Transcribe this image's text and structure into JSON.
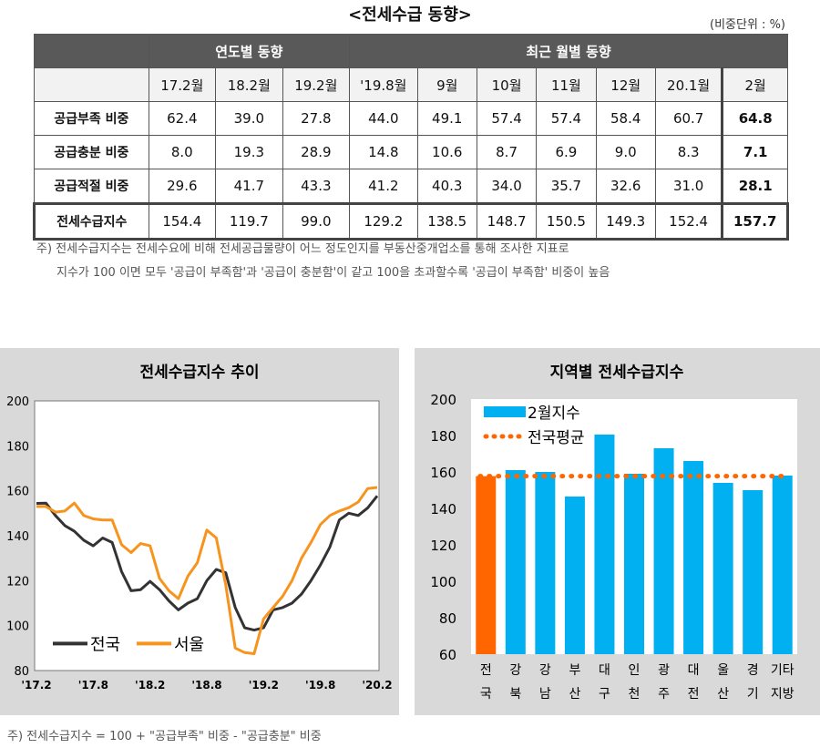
{
  "page_title": "<전세수급 동향>",
  "unit_note": "(비중단위 : %)",
  "table": {
    "group_headers": [
      "연도별 동향",
      "최근 월별 동향"
    ],
    "columns": [
      "17.2월",
      "18.2월",
      "19.2월",
      "'19.8월",
      "9월",
      "10월",
      "11월",
      "12월",
      "20.1월",
      "2월"
    ],
    "rows": [
      {
        "label": "공급부족 비중",
        "values": [
          "62.4",
          "39.0",
          "27.8",
          "44.0",
          "49.1",
          "57.4",
          "57.4",
          "58.4",
          "60.7",
          "64.8"
        ]
      },
      {
        "label": "공급충분 비중",
        "values": [
          "8.0",
          "19.3",
          "28.9",
          "14.8",
          "10.6",
          "8.7",
          "6.9",
          "9.0",
          "8.3",
          "7.1"
        ]
      },
      {
        "label": "공급적절 비중",
        "values": [
          "29.6",
          "41.7",
          "43.3",
          "41.2",
          "40.3",
          "34.0",
          "35.7",
          "32.6",
          "31.0",
          "28.1"
        ]
      },
      {
        "label": "전세수급지수",
        "values": [
          "154.4",
          "119.7",
          "99.0",
          "129.2",
          "138.5",
          "148.7",
          "150.5",
          "149.3",
          "152.4",
          "157.7"
        ]
      }
    ]
  },
  "notes": [
    "주) 전세수급지수는 전세수요에 비해 전세공급물량이 어느 정도인지를 부동산중개업소를 통해 조사한 지표로",
    "지수가 100 이면 모두 '공급이 부족함'과 '공급이 충분함'이 같고 100을 초과할수록 '공급이 부족함' 비중이 높음"
  ],
  "footnote": "주) 전세수급지수 = 100 + \"공급부족\" 비중 - \"공급충분\" 비중",
  "colors": {
    "nation": "#333333",
    "seoul": "#f7941d",
    "bar_region": "#00b0f0",
    "bar_nation": "#ff6600",
    "avg_line": "#ff6600",
    "panel_bg": "#d9d9d9"
  },
  "chart_data": [
    {
      "type": "line",
      "title": "전세수급지수 추이",
      "x_ticks": [
        "'17.2",
        "'17.8",
        "'18.2",
        "'18.8",
        "'19.2",
        "'19.8",
        "'20.2"
      ],
      "ylim": [
        80,
        200
      ],
      "y_ticks": [
        80,
        100,
        120,
        140,
        160,
        180,
        200
      ],
      "grid": false,
      "legend": "bottom-left",
      "series": [
        {
          "name": "전국",
          "color": "#333333",
          "values": [
            154.4,
            154.5,
            149,
            144.5,
            142,
            138,
            135.5,
            139,
            137,
            124,
            115.5,
            116,
            119.7,
            116,
            111,
            107,
            110,
            112,
            120,
            125,
            123.5,
            108,
            99,
            98,
            99,
            107,
            108,
            110,
            114,
            120,
            127,
            135,
            147,
            150,
            149,
            152.4,
            157.7
          ]
        },
        {
          "name": "서울",
          "color": "#f7941d",
          "values": [
            153,
            153,
            150.5,
            151,
            154.5,
            149,
            147.5,
            147,
            147,
            136,
            132.5,
            136.5,
            135.5,
            121,
            115.5,
            112,
            122,
            128,
            142.5,
            139,
            118,
            90,
            88,
            87.5,
            103,
            108,
            113,
            120,
            130,
            137,
            145,
            149,
            151,
            152.5,
            155,
            161,
            161.5
          ]
        }
      ]
    },
    {
      "type": "bar",
      "title": "지역별 전세수급지수",
      "categories": [
        "전국",
        "강북",
        "강남",
        "부산",
        "대구",
        "인천",
        "광주",
        "대전",
        "울산",
        "경기",
        "기타지방"
      ],
      "category_labels": [
        [
          "전",
          "국"
        ],
        [
          "강",
          "북"
        ],
        [
          "강",
          "남"
        ],
        [
          "부",
          "산"
        ],
        [
          "대",
          "구"
        ],
        [
          "인",
          "천"
        ],
        [
          "광",
          "주"
        ],
        [
          "대",
          "전"
        ],
        [
          "울",
          "산"
        ],
        [
          "경",
          "기"
        ],
        [
          "기타",
          "지방"
        ]
      ],
      "series": [
        {
          "name": "2월지수",
          "values": [
            157.7,
            161,
            160,
            146.5,
            180.5,
            159,
            173,
            166,
            154,
            150,
            158
          ]
        }
      ],
      "reference_line": {
        "name": "전국평균",
        "value": 157.7
      },
      "ylim": [
        60,
        200
      ],
      "y_ticks": [
        60,
        80,
        100,
        120,
        140,
        160,
        180,
        200
      ],
      "legend": "top-left"
    }
  ]
}
